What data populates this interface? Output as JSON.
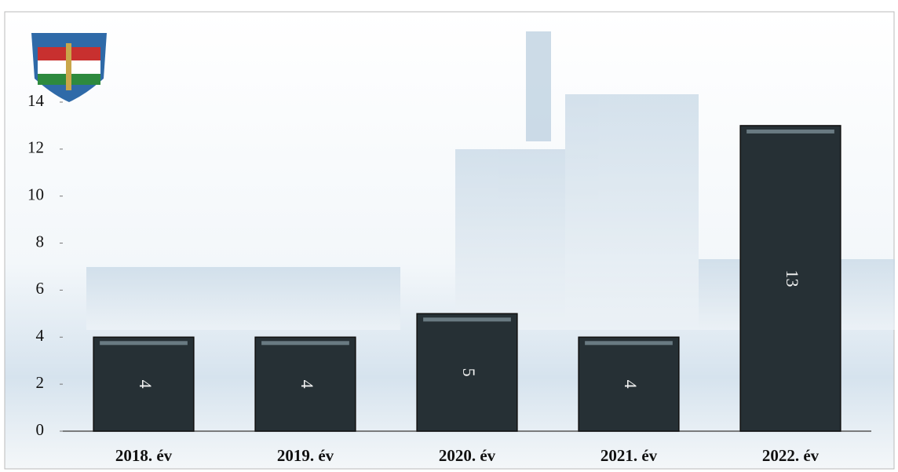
{
  "chart_data": {
    "type": "bar",
    "categories": [
      "2018. év",
      "2019. év",
      "2020. év",
      "2021. év",
      "2022. év"
    ],
    "values": [
      4,
      4,
      5,
      4,
      13
    ],
    "color": "#263035",
    "ylim": [
      0,
      14
    ],
    "yticks": [
      0,
      2,
      4,
      6,
      8,
      10,
      12,
      14
    ],
    "grid": false
  }
}
